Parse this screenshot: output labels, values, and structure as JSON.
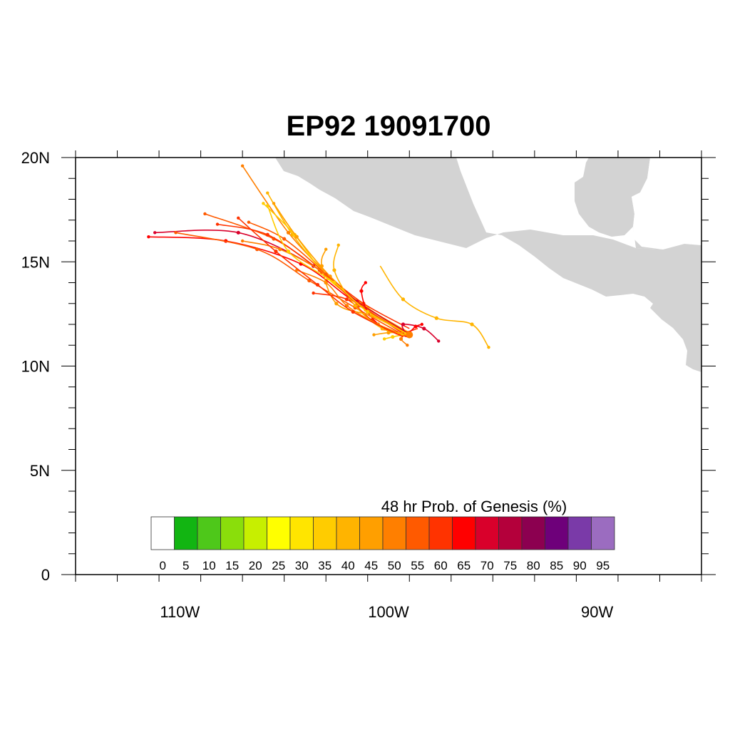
{
  "title": "EP92 19091700",
  "map": {
    "lon_range": [
      -115,
      -85
    ],
    "lat_range": [
      0,
      20
    ],
    "land_color": "#d3d3d3",
    "lat_ticks": [
      {
        "value": 0,
        "label": "0"
      },
      {
        "value": 5,
        "label": "5N"
      },
      {
        "value": 10,
        "label": "10N"
      },
      {
        "value": 15,
        "label": "15N"
      },
      {
        "value": 20,
        "label": "20N"
      }
    ],
    "lon_ticks": [
      {
        "value": -110,
        "label": "110W"
      },
      {
        "value": -100,
        "label": "100W"
      },
      {
        "value": -90,
        "label": "90W"
      }
    ]
  },
  "colorbar": {
    "title": "48 hr Prob. of Genesis (%)",
    "levels": [
      "0",
      "5",
      "10",
      "15",
      "20",
      "25",
      "30",
      "35",
      "40",
      "45",
      "50",
      "55",
      "60",
      "65",
      "70",
      "75",
      "80",
      "85",
      "90",
      "95"
    ],
    "colors": [
      "#ffffff",
      "#12b512",
      "#4ec81a",
      "#8ade0b",
      "#c7ef00",
      "#ffff00",
      "#ffe500",
      "#ffcc00",
      "#ffb400",
      "#ff9f00",
      "#ff7f00",
      "#ff5a00",
      "#ff3300",
      "#ff0000",
      "#d9002b",
      "#b4003b",
      "#8c0050",
      "#6e007a",
      "#7a3aa8",
      "#9b6cc0"
    ]
  },
  "chart_data": {
    "type": "tracks",
    "start_point": {
      "lon": -99.0,
      "lat": 11.5
    },
    "tracks": [
      {
        "color": "#ff7f00",
        "points": [
          [
            -99.0,
            11.5
          ],
          [
            -101.0,
            12.7
          ],
          [
            -102.8,
            14.3
          ],
          [
            -104.8,
            16.4
          ],
          [
            -107.0,
            19.6
          ]
        ]
      },
      {
        "color": "#ffb400",
        "points": [
          [
            -99.0,
            11.6
          ],
          [
            -101.2,
            12.9
          ],
          [
            -103.0,
            14.4
          ],
          [
            -104.6,
            16.3
          ],
          [
            -105.8,
            18.3
          ]
        ]
      },
      {
        "color": "#ffcc00",
        "points": [
          [
            -99.1,
            11.5
          ],
          [
            -101.0,
            12.8
          ],
          [
            -102.9,
            14.2
          ],
          [
            -104.5,
            16.3
          ],
          [
            -106.0,
            17.8
          ]
        ]
      },
      {
        "color": "#ff9f00",
        "points": [
          [
            -99.2,
            11.6
          ],
          [
            -101.1,
            12.7
          ],
          [
            -102.8,
            14.3
          ],
          [
            -104.4,
            16.2
          ],
          [
            -105.5,
            17.8
          ]
        ]
      },
      {
        "color": "#d9002b",
        "points": [
          [
            -99.1,
            11.6
          ],
          [
            -101.5,
            13.1
          ],
          [
            -103.6,
            14.8
          ],
          [
            -107.2,
            16.4
          ],
          [
            -111.2,
            16.4
          ]
        ]
      },
      {
        "color": "#ff0000",
        "points": [
          [
            -99.2,
            11.5
          ],
          [
            -101.8,
            13.2
          ],
          [
            -104.2,
            14.9
          ],
          [
            -107.8,
            16.0
          ],
          [
            -111.5,
            16.2
          ]
        ]
      },
      {
        "color": "#ff5a00",
        "points": [
          [
            -99.3,
            11.6
          ],
          [
            -101.5,
            13.0
          ],
          [
            -103.2,
            14.5
          ],
          [
            -105.5,
            16.1
          ],
          [
            -108.8,
            17.3
          ]
        ]
      },
      {
        "color": "#ff3300",
        "points": [
          [
            -99.0,
            11.8
          ],
          [
            -101.2,
            13.0
          ],
          [
            -103.3,
            14.6
          ],
          [
            -105.8,
            16.3
          ],
          [
            -108.2,
            16.8
          ]
        ]
      },
      {
        "color": "#ff7f00",
        "points": [
          [
            -99.4,
            11.7
          ],
          [
            -101.4,
            12.9
          ],
          [
            -103.0,
            14.4
          ],
          [
            -105.2,
            15.6
          ],
          [
            -107.0,
            16.0
          ]
        ]
      },
      {
        "color": "#ff5a00",
        "points": [
          [
            -99.3,
            11.5
          ],
          [
            -101.6,
            12.8
          ],
          [
            -103.8,
            14.1
          ],
          [
            -106.3,
            15.6
          ],
          [
            -110.2,
            16.4
          ]
        ]
      },
      {
        "color": "#ff0000",
        "points": [
          [
            -99.1,
            11.4
          ],
          [
            -100.2,
            11.8
          ],
          [
            -101.0,
            12.6
          ],
          [
            -101.3,
            13.6
          ],
          [
            -101.1,
            14.0
          ]
        ]
      },
      {
        "color": "#ff3300",
        "points": [
          [
            -98.6,
            11.8
          ],
          [
            -99.6,
            11.6
          ],
          [
            -100.8,
            12.2
          ],
          [
            -102.0,
            13.2
          ],
          [
            -103.6,
            13.5
          ]
        ]
      },
      {
        "color": "#ff7f00",
        "points": [
          [
            -99.0,
            11.4
          ],
          [
            -100.5,
            12.0
          ],
          [
            -102.0,
            12.9
          ],
          [
            -103.0,
            14.0
          ],
          [
            -104.4,
            14.6
          ]
        ]
      },
      {
        "color": "#ff9f00",
        "points": [
          [
            -99.2,
            11.6
          ],
          [
            -100.8,
            12.4
          ],
          [
            -102.5,
            13.0
          ],
          [
            -103.2,
            14.8
          ],
          [
            -103.0,
            15.6
          ]
        ]
      },
      {
        "color": "#ffb400",
        "points": [
          [
            -99.1,
            11.5
          ],
          [
            -100.3,
            11.8
          ],
          [
            -101.6,
            12.9
          ],
          [
            -102.6,
            14.6
          ],
          [
            -102.4,
            15.8
          ]
        ]
      },
      {
        "color": "#d9002b",
        "points": [
          [
            -99.2,
            11.6
          ],
          [
            -99.3,
            12.0
          ],
          [
            -98.3,
            11.8
          ],
          [
            -97.6,
            11.2
          ]
        ]
      },
      {
        "color": "#ff0000",
        "points": [
          [
            -99.0,
            11.6
          ],
          [
            -98.7,
            11.9
          ],
          [
            -98.4,
            12.0
          ]
        ]
      },
      {
        "color": "#ff7f00",
        "points": [
          [
            -99.2,
            11.5
          ],
          [
            -99.4,
            11.3
          ],
          [
            -99.1,
            11.0
          ]
        ]
      },
      {
        "color": "#ffcc00",
        "points": [
          [
            -99.3,
            11.5
          ],
          [
            -99.8,
            11.4
          ],
          [
            -100.2,
            11.3
          ]
        ]
      },
      {
        "color": "#ff9f00",
        "points": [
          [
            -99.3,
            11.6
          ],
          [
            -100.0,
            11.6
          ],
          [
            -100.7,
            11.5
          ]
        ]
      },
      {
        "color": "#ffb400",
        "points": [
          [
            -100.4,
            14.8
          ],
          [
            -99.3,
            13.2
          ],
          [
            -97.7,
            12.3
          ],
          [
            -96.0,
            12.0
          ],
          [
            -95.2,
            10.9
          ]
        ]
      },
      {
        "color": "#ff5a00",
        "points": [
          [
            -99.2,
            11.6
          ],
          [
            -101.4,
            12.9
          ],
          [
            -103.0,
            14.4
          ],
          [
            -105.0,
            16.1
          ],
          [
            -106.7,
            16.9
          ]
        ]
      },
      {
        "color": "#ffcc00",
        "points": [
          [
            -99.0,
            11.5
          ],
          [
            -101.0,
            12.6
          ],
          [
            -102.6,
            14.0
          ],
          [
            -104.8,
            15.5
          ],
          [
            -105.8,
            17.7
          ]
        ]
      },
      {
        "color": "#ff3300",
        "points": [
          [
            -99.3,
            11.4
          ],
          [
            -101.7,
            12.6
          ],
          [
            -103.4,
            13.9
          ],
          [
            -105.4,
            15.5
          ],
          [
            -107.2,
            17.1
          ]
        ]
      }
    ]
  }
}
